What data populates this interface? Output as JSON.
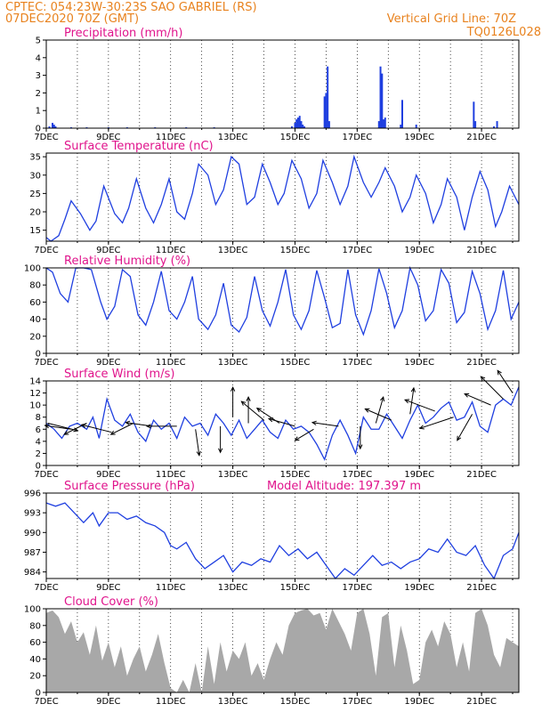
{
  "header": {
    "line1": "CPTEC:   054:23W-30:23S  SAO GABRIEL (RS)",
    "line2": "07DEC2020 70Z (GMT)",
    "grid_note": "Vertical Grid Line: 70Z",
    "run_code": "TQ0126L028"
  },
  "colors": {
    "header": "#e8821e",
    "title": "#e0148c",
    "series": "#1f3fe0",
    "cloud": "#a8a8a8",
    "grid": "#000000"
  },
  "chart_data": [
    {
      "type": "bar",
      "title": "Precipitation  (mm/h)",
      "xlabel": "",
      "ylabel": "",
      "ylim": [
        0,
        5
      ],
      "yticks": [
        0,
        1,
        2,
        3,
        4,
        5
      ],
      "xlim": [
        7,
        22.2
      ],
      "xticks": [
        7,
        9,
        11,
        13,
        15,
        17,
        19,
        21
      ],
      "xtick_labels": [
        "7DEC",
        "9DEC",
        "11DEC",
        "13DEC",
        "15DEC",
        "17DEC",
        "19DEC",
        "21DEC"
      ],
      "x": [
        7.1,
        7.2,
        7.25,
        7.3,
        7.8,
        8.3,
        9.0,
        9.6,
        10.5,
        11.5,
        12.4,
        14.9,
        15.0,
        15.05,
        15.1,
        15.15,
        15.2,
        15.25,
        15.3,
        15.95,
        16.0,
        16.05,
        16.1,
        17.7,
        17.75,
        17.8,
        17.85,
        17.9,
        18.4,
        18.45,
        18.9,
        20.75,
        20.8,
        21.4,
        21.5
      ],
      "values": [
        0.1,
        0.3,
        0.2,
        0.1,
        0.05,
        0.05,
        0.05,
        0.05,
        0.05,
        0.05,
        0.05,
        0.1,
        0.3,
        0.5,
        0.6,
        0.7,
        0.4,
        0.2,
        0.1,
        1.8,
        2.0,
        3.5,
        0.4,
        0.4,
        3.5,
        3.1,
        0.5,
        0.6,
        0.2,
        1.6,
        0.2,
        1.5,
        0.4,
        0.1,
        0.4
      ]
    },
    {
      "type": "line",
      "title": "Surface Temperature (nC)",
      "xlabel": "",
      "ylabel": "",
      "ylim": [
        12,
        36
      ],
      "yticks": [
        15,
        20,
        25,
        30,
        35
      ],
      "xlim": [
        7,
        22.2
      ],
      "xticks": [
        7,
        9,
        11,
        13,
        15,
        17,
        19,
        21
      ],
      "xtick_labels": [
        "7DEC",
        "9DEC",
        "11DEC",
        "13DEC",
        "15DEC",
        "17DEC",
        "19DEC",
        "21DEC"
      ],
      "series": [
        {
          "x": [
            7.0,
            7.15,
            7.4,
            7.6,
            7.8,
            8.1,
            8.4,
            8.6,
            8.85,
            9.2,
            9.45,
            9.65,
            9.9,
            10.2,
            10.45,
            10.7,
            10.95,
            11.2,
            11.45,
            11.7,
            11.9,
            12.2,
            12.45,
            12.7,
            12.95,
            13.2,
            13.45,
            13.7,
            13.95,
            14.2,
            14.45,
            14.65,
            14.9,
            15.2,
            15.45,
            15.7,
            15.9,
            16.2,
            16.45,
            16.7,
            16.9,
            17.2,
            17.45,
            17.7,
            17.9,
            18.2,
            18.45,
            18.7,
            18.9,
            19.2,
            19.45,
            19.7,
            19.9,
            20.2,
            20.45,
            20.7,
            20.95,
            21.2,
            21.45,
            21.65,
            21.9,
            22.2
          ],
          "values": [
            13.0,
            12.0,
            13.5,
            18.0,
            23.0,
            19.5,
            15.0,
            17.5,
            27.0,
            19.5,
            17.0,
            21.0,
            29.0,
            21.0,
            17.0,
            22.0,
            29.0,
            20.0,
            18.0,
            25.0,
            33.0,
            30.0,
            22.0,
            26.0,
            35.0,
            33.0,
            22.0,
            24.0,
            33.0,
            28.0,
            22.0,
            25.0,
            34.0,
            29.0,
            21.0,
            25.0,
            34.0,
            28.0,
            22.0,
            27.0,
            35.0,
            28.0,
            24.0,
            28.0,
            32.0,
            27.0,
            20.0,
            24.0,
            30.0,
            25.0,
            17.0,
            22.0,
            29.0,
            24.0,
            15.0,
            24.0,
            31.0,
            26.0,
            16.0,
            20.0,
            27.0,
            22.0
          ]
        }
      ]
    },
    {
      "type": "line",
      "title": "Relative Humidity (%)",
      "xlabel": "",
      "ylabel": "",
      "ylim": [
        0,
        100
      ],
      "yticks": [
        0,
        20,
        40,
        60,
        80,
        100
      ],
      "xlim": [
        7,
        22.2
      ],
      "xticks": [
        7,
        9,
        11,
        13,
        15,
        17,
        19,
        21
      ],
      "xtick_labels": [
        "7DEC",
        "9DEC",
        "11DEC",
        "13DEC",
        "15DEC",
        "17DEC",
        "19DEC",
        "21DEC"
      ],
      "series": [
        {
          "x": [
            7.0,
            7.2,
            7.45,
            7.7,
            7.95,
            8.2,
            8.45,
            8.75,
            8.95,
            9.2,
            9.45,
            9.7,
            9.95,
            10.2,
            10.45,
            10.7,
            10.95,
            11.2,
            11.45,
            11.7,
            11.9,
            12.2,
            12.45,
            12.7,
            12.95,
            13.2,
            13.45,
            13.7,
            13.95,
            14.2,
            14.45,
            14.7,
            14.95,
            15.2,
            15.45,
            15.7,
            15.95,
            16.2,
            16.45,
            16.7,
            16.95,
            17.2,
            17.45,
            17.7,
            17.95,
            18.2,
            18.45,
            18.7,
            18.95,
            19.2,
            19.45,
            19.7,
            19.95,
            20.2,
            20.45,
            20.7,
            20.95,
            21.2,
            21.45,
            21.7,
            21.95,
            22.2
          ],
          "values": [
            100.0,
            95.0,
            70.0,
            60.0,
            100.0,
            100.0,
            98.0,
            60.0,
            40.0,
            55.0,
            98.0,
            90.0,
            45.0,
            33.0,
            60.0,
            96.0,
            50.0,
            40.0,
            60.0,
            90.0,
            40.0,
            28.0,
            45.0,
            82.0,
            33.0,
            25.0,
            42.0,
            90.0,
            50.0,
            32.0,
            60.0,
            98.0,
            45.0,
            28.0,
            50.0,
            97.0,
            65.0,
            30.0,
            35.0,
            98.0,
            45.0,
            22.0,
            50.0,
            99.0,
            70.0,
            30.0,
            50.0,
            100.0,
            80.0,
            38.0,
            50.0,
            98.0,
            82.0,
            36.0,
            48.0,
            96.0,
            70.0,
            28.0,
            50.0,
            97.0,
            40.0,
            60.0
          ]
        }
      ]
    },
    {
      "type": "line",
      "title": "Surface Wind (m/s)",
      "xlabel": "",
      "ylabel": "",
      "ylim": [
        0,
        14
      ],
      "yticks": [
        0,
        2,
        4,
        6,
        8,
        10,
        12,
        14
      ],
      "xlim": [
        7,
        22.2
      ],
      "xticks": [
        7,
        9,
        11,
        13,
        15,
        17,
        19,
        21
      ],
      "xtick_labels": [
        "7DEC",
        "9DEC",
        "11DEC",
        "13DEC",
        "15DEC",
        "17DEC",
        "19DEC",
        "21DEC"
      ],
      "series": [
        {
          "x": [
            7.0,
            7.25,
            7.5,
            7.75,
            8.0,
            8.3,
            8.5,
            8.7,
            8.95,
            9.2,
            9.45,
            9.7,
            9.95,
            10.2,
            10.45,
            10.7,
            10.95,
            11.2,
            11.45,
            11.7,
            11.95,
            12.2,
            12.45,
            12.7,
            12.95,
            13.2,
            13.45,
            13.7,
            13.95,
            14.2,
            14.45,
            14.7,
            14.95,
            15.2,
            15.45,
            15.7,
            15.95,
            16.2,
            16.45,
            16.7,
            16.95,
            17.2,
            17.45,
            17.7,
            17.95,
            18.2,
            18.45,
            18.7,
            18.95,
            19.2,
            19.45,
            19.7,
            19.95,
            20.2,
            20.45,
            20.7,
            20.95,
            21.2,
            21.45,
            21.7,
            21.95,
            22.2
          ],
          "values": [
            7.0,
            6.0,
            4.5,
            6.5,
            7.0,
            6.0,
            8.0,
            4.5,
            11.0,
            7.5,
            6.5,
            8.5,
            5.5,
            4.0,
            7.5,
            6.0,
            7.0,
            4.5,
            8.0,
            6.5,
            7.0,
            5.0,
            8.5,
            7.0,
            5.0,
            7.5,
            4.5,
            6.0,
            7.5,
            5.5,
            4.5,
            7.5,
            6.0,
            6.5,
            5.5,
            3.5,
            1.0,
            5.0,
            7.5,
            5.0,
            2.0,
            8.0,
            6.0,
            6.0,
            8.5,
            6.5,
            4.5,
            7.5,
            10.0,
            7.0,
            8.0,
            9.5,
            10.5,
            7.5,
            8.0,
            10.5,
            6.5,
            5.5,
            10.0,
            11.0,
            10.0,
            13.0
          ]
        }
      ]
    },
    {
      "type": "line",
      "title": "Surface Pressure (hPa)",
      "annotation": "Model Altitude: 197.397 m",
      "xlabel": "",
      "ylabel": "",
      "ylim": [
        983,
        996
      ],
      "yticks": [
        984,
        987,
        990,
        993,
        996
      ],
      "xlim": [
        7,
        22.2
      ],
      "xticks": [
        7,
        9,
        11,
        13,
        15,
        17,
        19,
        21
      ],
      "xtick_labels": [
        "7DEC",
        "9DEC",
        "11DEC",
        "13DEC",
        "15DEC",
        "17DEC",
        "19DEC",
        "21DEC"
      ],
      "series": [
        {
          "x": [
            7.0,
            7.3,
            7.6,
            7.9,
            8.2,
            8.5,
            8.7,
            9.0,
            9.3,
            9.6,
            9.9,
            10.2,
            10.5,
            10.8,
            11.0,
            11.2,
            11.5,
            11.8,
            12.1,
            12.4,
            12.7,
            13.0,
            13.3,
            13.6,
            13.9,
            14.2,
            14.5,
            14.8,
            15.1,
            15.4,
            15.7,
            16.0,
            16.3,
            16.6,
            16.9,
            17.2,
            17.5,
            17.8,
            18.1,
            18.4,
            18.7,
            19.0,
            19.3,
            19.6,
            19.9,
            20.2,
            20.5,
            20.8,
            21.1,
            21.4,
            21.7,
            22.0,
            22.2
          ],
          "values": [
            994.5,
            994.0,
            994.5,
            993.0,
            991.5,
            993.0,
            991.0,
            993.0,
            993.0,
            992.0,
            992.5,
            991.5,
            991.0,
            990.0,
            988.0,
            987.5,
            988.5,
            986.0,
            984.5,
            985.5,
            986.5,
            984.0,
            985.5,
            985.0,
            986.0,
            985.5,
            988.0,
            986.5,
            987.5,
            986.0,
            987.0,
            985.0,
            983.0,
            984.5,
            983.5,
            985.0,
            986.5,
            985.0,
            985.5,
            984.5,
            985.5,
            986.0,
            987.5,
            987.0,
            989.0,
            987.0,
            986.5,
            988.0,
            985.0,
            983.0,
            986.5,
            987.5,
            990.0
          ]
        }
      ]
    },
    {
      "type": "area",
      "title": "Cloud Cover (%)",
      "xlabel": "",
      "ylabel": "",
      "ylim": [
        0,
        100
      ],
      "yticks": [
        0,
        20,
        40,
        60,
        80,
        100
      ],
      "xlim": [
        7,
        22.2
      ],
      "xticks": [
        7,
        9,
        11,
        13,
        15,
        17,
        19,
        21
      ],
      "xtick_labels": [
        "7DEC",
        "9DEC",
        "11DEC",
        "13DEC",
        "15DEC",
        "17DEC",
        "19DEC",
        "21DEC"
      ],
      "x": [
        7.0,
        7.2,
        7.4,
        7.6,
        7.8,
        8.0,
        8.2,
        8.4,
        8.6,
        8.8,
        9.0,
        9.2,
        9.4,
        9.6,
        9.8,
        10.0,
        10.2,
        10.4,
        10.6,
        10.8,
        11.0,
        11.2,
        11.4,
        11.6,
        11.8,
        12.0,
        12.2,
        12.4,
        12.6,
        12.8,
        13.0,
        13.2,
        13.4,
        13.6,
        13.8,
        14.0,
        14.2,
        14.4,
        14.6,
        14.8,
        15.0,
        15.2,
        15.4,
        15.6,
        15.8,
        16.0,
        16.2,
        16.4,
        16.6,
        16.8,
        17.0,
        17.2,
        17.4,
        17.6,
        17.8,
        18.0,
        18.2,
        18.4,
        18.6,
        18.8,
        19.0,
        19.2,
        19.4,
        19.6,
        19.8,
        20.0,
        20.2,
        20.4,
        20.6,
        20.8,
        21.0,
        21.2,
        21.4,
        21.6,
        21.8,
        22.0,
        22.2
      ],
      "values": [
        95.0,
        98.0,
        90.0,
        70.0,
        85.0,
        60.0,
        72.0,
        45.0,
        80.0,
        38.0,
        60.0,
        30.0,
        55.0,
        20.0,
        40.0,
        55.0,
        25.0,
        45.0,
        70.0,
        35.0,
        5.0,
        0.0,
        15.0,
        0.0,
        35.0,
        0.0,
        55.0,
        10.0,
        60.0,
        25.0,
        50.0,
        40.0,
        60.0,
        20.0,
        35.0,
        15.0,
        40.0,
        60.0,
        45.0,
        80.0,
        95.0,
        98.0,
        100.0,
        92.0,
        95.0,
        75.0,
        100.0,
        85.0,
        70.0,
        50.0,
        95.0,
        100.0,
        70.0,
        20.0,
        90.0,
        95.0,
        30.0,
        80.0,
        50.0,
        10.0,
        15.0,
        60.0,
        75.0,
        55.0,
        85.0,
        70.0,
        30.0,
        60.0,
        25.0,
        95.0,
        100.0,
        80.0,
        45.0,
        30.0,
        65.0,
        60.0,
        55.0
      ]
    }
  ],
  "wind_vectors": [
    {
      "day": 7.05,
      "speed": 7.0,
      "u": 8,
      "v": -2
    },
    {
      "day": 7.8,
      "speed": 6.0,
      "u": -7,
      "v": 1
    },
    {
      "day": 8.3,
      "speed": 7.0,
      "u": -6,
      "v": -3
    },
    {
      "day": 9.1,
      "speed": 5.5,
      "u": -8,
      "v": 2
    },
    {
      "day": 9.8,
      "speed": 7.0,
      "u": -6,
      "v": -3
    },
    {
      "day": 10.4,
      "speed": 6.5,
      "u": -7,
      "v": 1
    },
    {
      "day": 11.2,
      "speed": 6.5,
      "u": -8,
      "v": 0
    },
    {
      "day": 11.8,
      "speed": 6.0,
      "u": 1,
      "v": -7
    },
    {
      "day": 12.6,
      "speed": 6.5,
      "u": 0,
      "v": -7
    },
    {
      "day": 13.0,
      "speed": 8.0,
      "u": 0,
      "v": 8
    },
    {
      "day": 13.5,
      "speed": 7.0,
      "u": 0,
      "v": 7
    },
    {
      "day": 14.0,
      "speed": 7.5,
      "u": -6,
      "v": 5
    },
    {
      "day": 14.5,
      "speed": 7.0,
      "u": -6,
      "v": 4
    },
    {
      "day": 15.0,
      "speed": 6.5,
      "u": -7,
      "v": 2
    },
    {
      "day": 15.6,
      "speed": 6.0,
      "u": -5,
      "v": -3
    },
    {
      "day": 16.4,
      "speed": 6.5,
      "u": -7,
      "v": 1
    },
    {
      "day": 17.1,
      "speed": 6.5,
      "u": 0,
      "v": -6
    },
    {
      "day": 17.6,
      "speed": 7.0,
      "u": 2,
      "v": 7
    },
    {
      "day": 18.1,
      "speed": 7.5,
      "u": -7,
      "v": 3
    },
    {
      "day": 18.7,
      "speed": 8.5,
      "u": 1,
      "v": 7
    },
    {
      "day": 19.5,
      "speed": 9.0,
      "u": -8,
      "v": 3
    },
    {
      "day": 20.1,
      "speed": 8.0,
      "u": -9,
      "v": -3
    },
    {
      "day": 20.7,
      "speed": 8.5,
      "u": -4,
      "v": -7
    },
    {
      "day": 21.3,
      "speed": 10.0,
      "u": -7,
      "v": 3
    },
    {
      "day": 21.7,
      "speed": 11.0,
      "u": -6,
      "v": 6
    },
    {
      "day": 22.0,
      "speed": 12.0,
      "u": -4,
      "v": 6
    }
  ]
}
